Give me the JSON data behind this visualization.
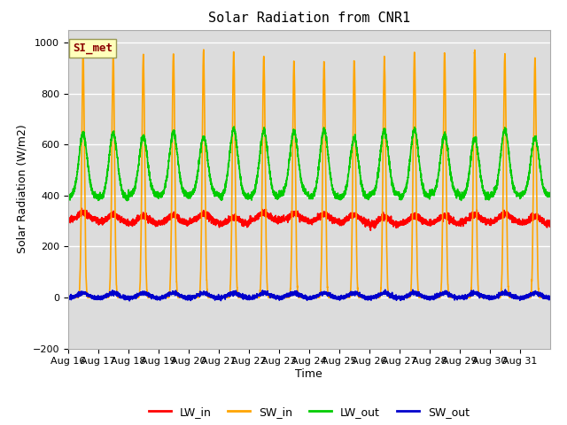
{
  "title": "Solar Radiation from CNR1",
  "xlabel": "Time",
  "ylabel": "Solar Radiation (W/m2)",
  "ylim": [
    -200,
    1050
  ],
  "bg_color": "#dcdcdc",
  "fig_bg_color": "#ffffff",
  "grid_color": "#ffffff",
  "annotation_text": "SI_met",
  "annotation_box_color": "#ffffbb",
  "annotation_text_color": "#8b0000",
  "series": {
    "LW_in": {
      "color": "#ff0000",
      "lw": 1.2
    },
    "SW_in": {
      "color": "#ffa500",
      "lw": 1.2
    },
    "LW_out": {
      "color": "#00cc00",
      "lw": 1.2
    },
    "SW_out": {
      "color": "#0000cc",
      "lw": 1.2
    }
  },
  "num_days": 16,
  "pts_per_day": 288,
  "x_tick_labels": [
    "Aug 16",
    "Aug 17",
    "Aug 18",
    "Aug 19",
    "Aug 20",
    "Aug 21",
    "Aug 22",
    "Aug 23",
    "Aug 24",
    "Aug 25",
    "Aug 26",
    "Aug 27",
    "Aug 28",
    "Aug 29",
    "Aug 30",
    "Aug 31"
  ],
  "yticks": [
    -200,
    0,
    200,
    400,
    600,
    800,
    1000
  ]
}
